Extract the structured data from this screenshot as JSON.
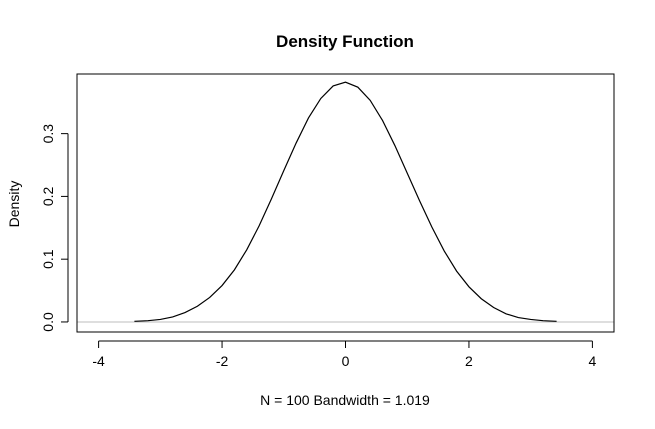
{
  "chart_data": {
    "type": "line",
    "title": "Density Function",
    "xlabel": "N = 100   Bandwidth = 1.019",
    "ylabel": "Density",
    "xlim": [
      -4.35,
      4.35
    ],
    "ylim": [
      -0.016,
      0.395
    ],
    "xticks": [
      -4,
      -2,
      0,
      2,
      4
    ],
    "xtick_labels": [
      "-4",
      "-2",
      "0",
      "2",
      "4"
    ],
    "yticks": [
      0.0,
      0.1,
      0.2,
      0.3
    ],
    "ytick_labels": [
      "0.0",
      "0.1",
      "0.2",
      "0.3"
    ],
    "grid": false,
    "baseline": {
      "y": 0,
      "color": "#bebebe"
    },
    "line_color": "#000000",
    "series": [
      {
        "x": [
          -3.42,
          -3.2,
          -3.0,
          -2.8,
          -2.6,
          -2.4,
          -2.2,
          -2.0,
          -1.8,
          -1.6,
          -1.4,
          -1.2,
          -1.0,
          -0.8,
          -0.6,
          -0.4,
          -0.2,
          0.0,
          0.2,
          0.4,
          0.6,
          0.8,
          1.0,
          1.2,
          1.4,
          1.6,
          1.8,
          2.0,
          2.2,
          2.4,
          2.6,
          2.8,
          3.0,
          3.2,
          3.42
        ],
        "y": [
          0.001,
          0.002,
          0.004,
          0.008,
          0.015,
          0.025,
          0.039,
          0.058,
          0.083,
          0.115,
          0.153,
          0.196,
          0.241,
          0.285,
          0.325,
          0.356,
          0.376,
          0.382,
          0.374,
          0.353,
          0.321,
          0.281,
          0.237,
          0.193,
          0.151,
          0.113,
          0.081,
          0.056,
          0.037,
          0.023,
          0.013,
          0.007,
          0.004,
          0.002,
          0.001
        ]
      }
    ]
  }
}
